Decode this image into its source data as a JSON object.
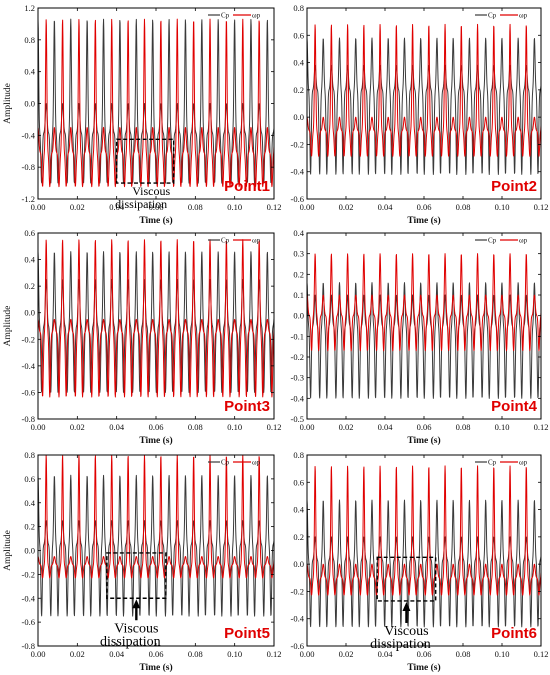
{
  "figure": {
    "colors": {
      "cp": "#3a3a3a",
      "wp": "#e00000",
      "label": "#e00000"
    }
  },
  "chart_data": [
    {
      "type": "line",
      "label": "Point1",
      "xlabel": "Time (s)",
      "ylabel": "Amplitude",
      "xlim": [
        0,
        0.12
      ],
      "ylim": [
        -1.2,
        1.2
      ],
      "xticks": [
        "0.00",
        "0.02",
        "0.04",
        "0.06",
        "0.08",
        "0.10",
        "0.12"
      ],
      "yticks": [
        "1.2",
        "0.8",
        "0.4",
        "0.0",
        "-0.4",
        "-0.8",
        "-1.2"
      ],
      "legend": [
        "Cp",
        "ωp"
      ],
      "annotation": {
        "text": [
          "Viscous",
          "dissipation"
        ],
        "box_x": [
          0.04,
          0.069
        ],
        "box_y": [
          -0.45,
          -1.0
        ]
      },
      "series": [
        {
          "name": "Cp",
          "period_s": 0.00833,
          "baseline": -0.37,
          "main_peak": 1.06,
          "secondary_peak": 0.0,
          "trough": -1.0
        },
        {
          "name": "ωp",
          "period_s": 0.00833,
          "baseline": -0.62,
          "main_peak": 1.06,
          "secondary_peak": -0.3,
          "trough": -1.12
        }
      ]
    },
    {
      "type": "line",
      "label": "Point2",
      "xlabel": "Time (s)",
      "ylabel": "",
      "xlim": [
        0,
        0.12
      ],
      "ylim": [
        -0.6,
        0.8
      ],
      "xticks": [
        "0.00",
        "0.02",
        "0.04",
        "0.06",
        "0.08",
        "0.10",
        "0.12"
      ],
      "yticks": [
        "0.8",
        "0.6",
        "0.4",
        "0.2",
        "0.0",
        "-0.2",
        "-0.4",
        "-0.6"
      ],
      "legend": [
        "Cp",
        "ωp"
      ],
      "series": [
        {
          "name": "Cp",
          "period_s": 0.00833,
          "baseline": 0.2,
          "main_peak": 0.58,
          "secondary_peak": 0.38,
          "trough": -0.42
        },
        {
          "name": "ωp",
          "period_s": 0.00833,
          "baseline": -0.1,
          "main_peak": 0.68,
          "secondary_peak": 0.0,
          "trough": -0.32
        }
      ]
    },
    {
      "type": "line",
      "label": "Point3",
      "xlabel": "Time (s)",
      "ylabel": "Amplitude",
      "xlim": [
        0,
        0.12
      ],
      "ylim": [
        -0.8,
        0.6
      ],
      "xticks": [
        "0.00",
        "0.02",
        "0.04",
        "0.06",
        "0.08",
        "0.10",
        "0.12"
      ],
      "yticks": [
        "0.6",
        "0.4",
        "0.2",
        "0.0",
        "-0.2",
        "-0.4",
        "-0.6",
        "-0.8"
      ],
      "legend": [
        "Cp",
        "ωp"
      ],
      "series": [
        {
          "name": "Cp",
          "period_s": 0.00833,
          "baseline": -0.1,
          "main_peak": 0.46,
          "secondary_peak": 0.25,
          "trough": -0.6
        },
        {
          "name": "ωp",
          "period_s": 0.00833,
          "baseline": -0.15,
          "main_peak": 0.55,
          "secondary_peak": -0.05,
          "trough": -0.72
        }
      ]
    },
    {
      "type": "line",
      "label": "Point4",
      "xlabel": "Time (s)",
      "ylabel": "",
      "xlim": [
        0,
        0.12
      ],
      "ylim": [
        -0.5,
        0.4
      ],
      "xticks": [
        "0.00",
        "0.02",
        "0.04",
        "0.06",
        "0.08",
        "0.10",
        "0.12"
      ],
      "yticks": [
        "0.4",
        "0.3",
        "0.2",
        "0.1",
        "0.0",
        "-0.1",
        "-0.2",
        "-0.3",
        "-0.4",
        "-0.5"
      ],
      "legend": [
        "Cp",
        "ωp"
      ],
      "series": [
        {
          "name": "Cp",
          "period_s": 0.00833,
          "baseline": -0.05,
          "main_peak": 0.16,
          "secondary_peak": 0.1,
          "trough": -0.4
        },
        {
          "name": "ωp",
          "period_s": 0.00833,
          "baseline": 0.0,
          "main_peak": 0.3,
          "secondary_peak": 0.1,
          "trough": -0.2
        }
      ]
    },
    {
      "type": "line",
      "label": "Point5",
      "xlabel": "Time (s)",
      "ylabel": "Amplitude",
      "xlim": [
        0,
        0.12
      ],
      "ylim": [
        -0.8,
        0.8
      ],
      "xticks": [
        "0.00",
        "0.02",
        "0.04",
        "0.06",
        "0.08",
        "0.10",
        "0.12"
      ],
      "yticks": [
        "0.8",
        "0.6",
        "0.4",
        "0.2",
        "0.0",
        "-0.2",
        "-0.4",
        "-0.6",
        "-0.8"
      ],
      "legend": [
        "Cp",
        "ωp"
      ],
      "annotation": {
        "text": [
          "Viscous",
          "dissipation"
        ],
        "box_x": [
          0.035,
          0.065
        ],
        "box_y": [
          -0.02,
          -0.4
        ]
      },
      "series": [
        {
          "name": "Cp",
          "period_s": 0.00833,
          "baseline": 0.05,
          "main_peak": 0.63,
          "secondary_peak": 0.25,
          "trough": -0.55
        },
        {
          "name": "ωp",
          "period_s": 0.00833,
          "baseline": -0.12,
          "main_peak": 0.8,
          "secondary_peak": -0.05,
          "trough": -0.25
        }
      ]
    },
    {
      "type": "line",
      "label": "Point6",
      "xlabel": "Time (s)",
      "ylabel": "",
      "xlim": [
        0,
        0.12
      ],
      "ylim": [
        -0.6,
        0.8
      ],
      "xticks": [
        "0.00",
        "0.02",
        "0.04",
        "0.06",
        "0.08",
        "0.10",
        "0.12"
      ],
      "yticks": [
        "0.8",
        "0.6",
        "0.4",
        "0.2",
        "0.0",
        "-0.2",
        "-0.4",
        "-0.6"
      ],
      "legend": [
        "Cp",
        "ωp"
      ],
      "annotation": {
        "text": [
          "Viscous",
          "dissipation"
        ],
        "box_x": [
          0.036,
          0.066
        ],
        "box_y": [
          0.05,
          -0.27
        ]
      },
      "series": [
        {
          "name": "Cp",
          "period_s": 0.00833,
          "baseline": 0.03,
          "main_peak": 0.47,
          "secondary_peak": 0.2,
          "trough": -0.46
        },
        {
          "name": "ωp",
          "period_s": 0.00833,
          "baseline": -0.1,
          "main_peak": 0.72,
          "secondary_peak": 0.0,
          "trough": -0.25
        }
      ]
    }
  ]
}
